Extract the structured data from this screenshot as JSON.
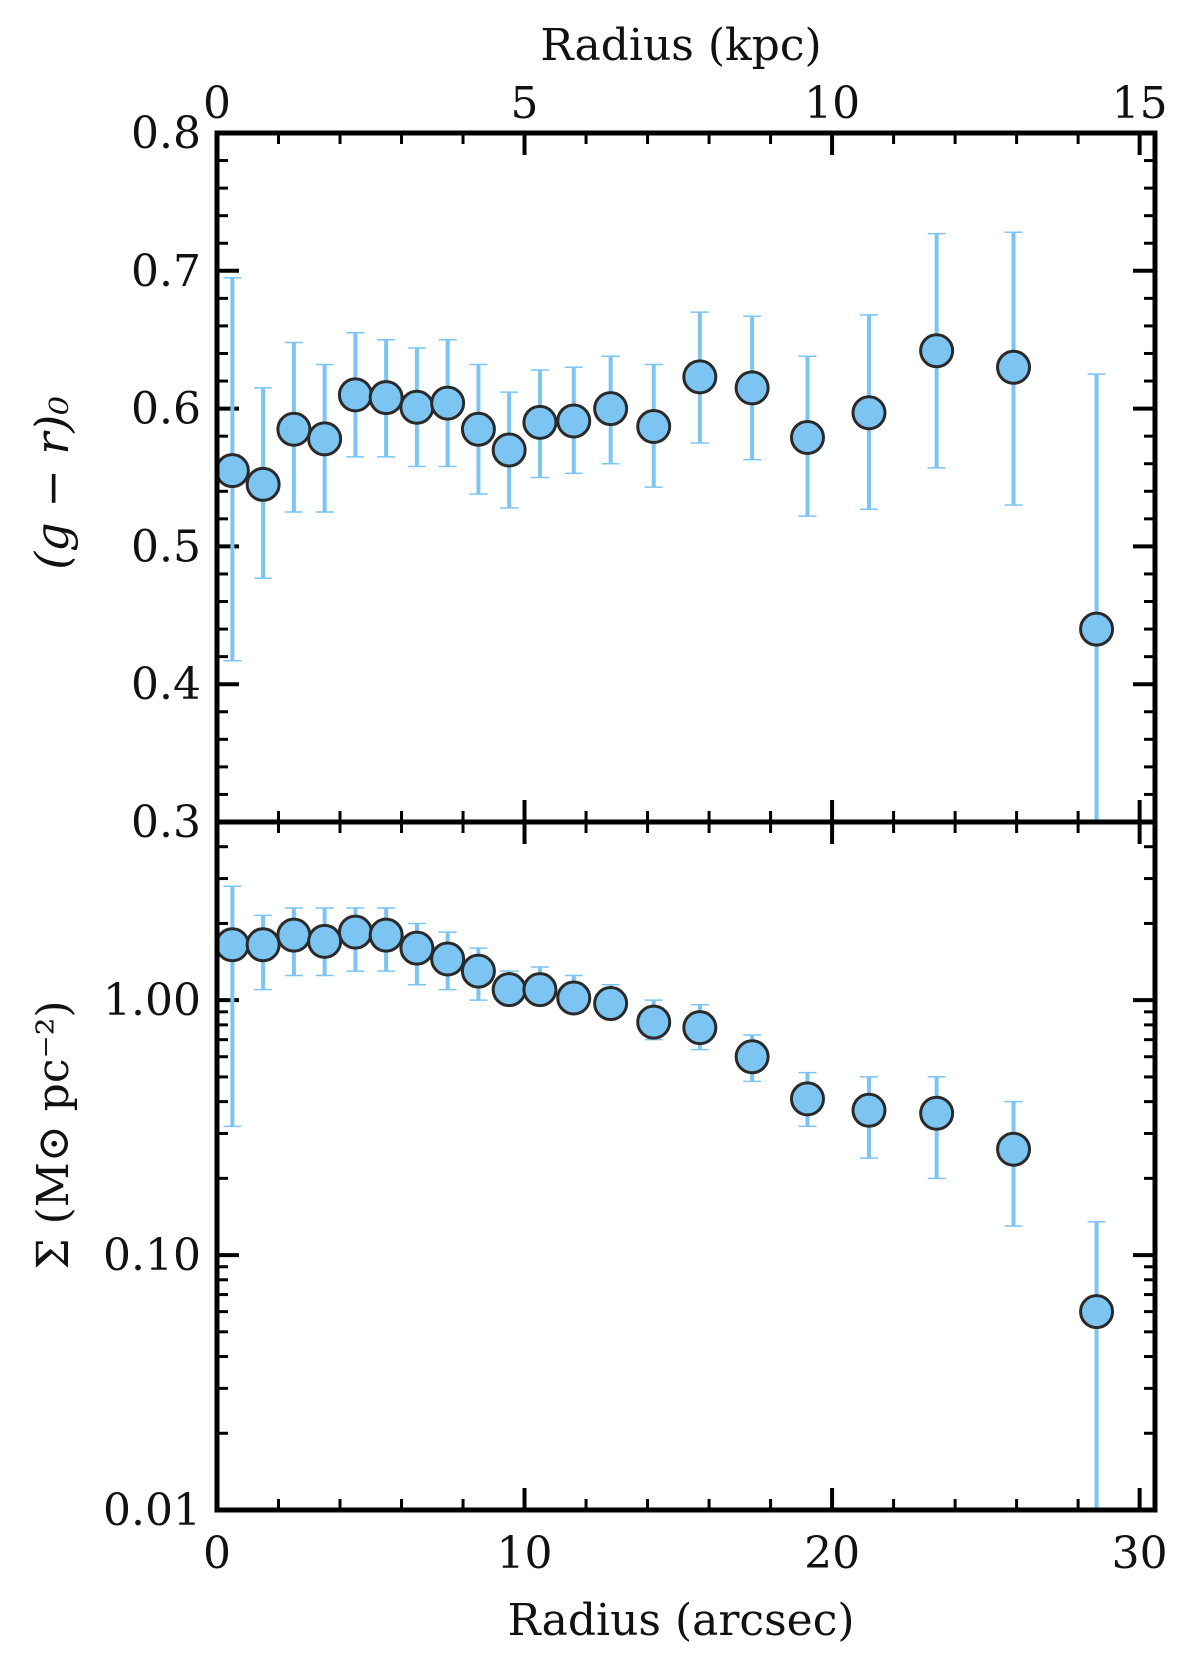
{
  "chart_data": [
    {
      "type": "scatter",
      "panel": "top",
      "xlabel_top": "Radius (kpc)",
      "ylabel": "(g − r)₀",
      "xlim": [
        0,
        30.5
      ],
      "ylim": [
        0.3,
        0.8
      ],
      "x_top_ticks": [
        "0",
        "5",
        "10",
        "15"
      ],
      "x_top_tick_values_kpc": [
        0,
        5,
        10,
        15
      ],
      "kpc_to_arcsec": 2.0,
      "y_ticks": [
        "0.3",
        "0.4",
        "0.5",
        "0.6",
        "0.7",
        "0.8"
      ],
      "y_tick_values": [
        0.3,
        0.4,
        0.5,
        0.6,
        0.7,
        0.8
      ],
      "x": [
        0.5,
        1.5,
        2.5,
        3.5,
        4.5,
        5.5,
        6.5,
        7.5,
        8.5,
        9.5,
        10.5,
        11.6,
        12.8,
        14.2,
        15.7,
        17.4,
        19.2,
        21.2,
        23.4,
        25.9,
        28.6
      ],
      "y": [
        0.555,
        0.545,
        0.585,
        0.578,
        0.61,
        0.608,
        0.601,
        0.604,
        0.585,
        0.57,
        0.59,
        0.591,
        0.6,
        0.587,
        0.623,
        0.615,
        0.579,
        0.597,
        0.642,
        0.63,
        0.44
      ],
      "yerr_low": [
        0.417,
        0.477,
        0.525,
        0.525,
        0.565,
        0.565,
        0.558,
        0.558,
        0.538,
        0.528,
        0.55,
        0.553,
        0.56,
        0.543,
        0.575,
        0.563,
        0.522,
        0.527,
        0.557,
        0.53,
        0.3
      ],
      "yerr_high": [
        0.695,
        0.615,
        0.648,
        0.632,
        0.655,
        0.65,
        0.644,
        0.65,
        0.632,
        0.612,
        0.628,
        0.63,
        0.638,
        0.632,
        0.67,
        0.667,
        0.638,
        0.668,
        0.727,
        0.728,
        0.625
      ],
      "grid": false
    },
    {
      "type": "scatter",
      "panel": "bottom",
      "xlabel": "Radius (arcsec)",
      "ylabel": "Σ (M⊙ pc⁻²)",
      "xlim": [
        0,
        30.5
      ],
      "ylim": [
        0.01,
        5
      ],
      "yscale": "log",
      "x_ticks": [
        "0",
        "10",
        "20",
        "30"
      ],
      "x_tick_values": [
        0,
        10,
        20,
        30
      ],
      "y_ticks": [
        "0.01",
        "0.10",
        "1.00"
      ],
      "y_tick_values": [
        0.01,
        0.1,
        1.0
      ],
      "x": [
        0.5,
        1.5,
        2.5,
        3.5,
        4.5,
        5.5,
        6.5,
        7.5,
        8.5,
        9.5,
        10.5,
        11.6,
        12.8,
        14.2,
        15.7,
        17.4,
        19.2,
        21.2,
        23.4,
        25.9,
        28.6
      ],
      "y": [
        1.65,
        1.65,
        1.8,
        1.7,
        1.85,
        1.8,
        1.6,
        1.45,
        1.3,
        1.1,
        1.1,
        1.02,
        0.97,
        0.82,
        0.78,
        0.6,
        0.41,
        0.37,
        0.36,
        0.26,
        0.06
      ],
      "yerr_low": [
        0.32,
        1.1,
        1.25,
        1.25,
        1.3,
        1.3,
        1.15,
        1.1,
        1.0,
        0.97,
        0.97,
        0.9,
        0.85,
        0.7,
        0.64,
        0.48,
        0.32,
        0.24,
        0.2,
        0.13,
        0.008
      ],
      "yerr_high": [
        2.8,
        2.15,
        2.3,
        2.3,
        2.3,
        2.3,
        2.0,
        1.85,
        1.6,
        1.3,
        1.35,
        1.25,
        1.15,
        1.0,
        0.96,
        0.73,
        0.52,
        0.5,
        0.5,
        0.4,
        0.135
      ],
      "grid": false
    }
  ],
  "style": {
    "marker_fill": "#7cc4f2",
    "marker_edge": "#2a2a2a",
    "errorbar_color": "#7cc4f2",
    "axis_color": "#000000"
  }
}
